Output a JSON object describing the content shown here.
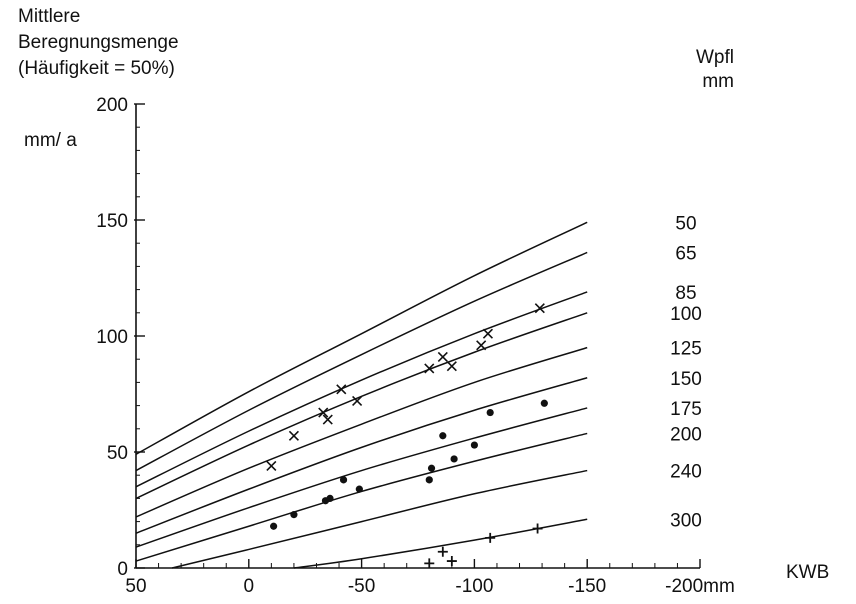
{
  "chart_data": {
    "type": "line",
    "title_lines": [
      "Mittlere",
      "Beregnungsmenge",
      "(Häufigkeit = 50%)"
    ],
    "ylabel_unit": "mm/ a",
    "xlabel": "KWB",
    "xunit_suffix": "mm",
    "legend_title": [
      "Wpfl",
      "mm"
    ],
    "xlim": [
      50,
      -200
    ],
    "ylim": [
      0,
      200
    ],
    "x_ticks": [
      {
        "value": 50,
        "label": "50"
      },
      {
        "value": 0,
        "label": "0"
      },
      {
        "value": -50,
        "label": "-50"
      },
      {
        "value": -100,
        "label": "-100"
      },
      {
        "value": -150,
        "label": "-150"
      },
      {
        "value": -200,
        "label": "-200mm"
      }
    ],
    "y_ticks": [
      {
        "value": 0,
        "label": "0"
      },
      {
        "value": 50,
        "label": "50"
      },
      {
        "value": 100,
        "label": "100"
      },
      {
        "value": 150,
        "label": "150"
      },
      {
        "value": 200,
        "label": "200"
      }
    ],
    "series": [
      {
        "name": "50",
        "x": [
          50,
          0,
          -50,
          -100,
          -150
        ],
        "y": [
          49,
          76,
          101,
          126,
          149
        ]
      },
      {
        "name": "65",
        "x": [
          50,
          0,
          -50,
          -100,
          -150
        ],
        "y": [
          42,
          68,
          92,
          115,
          136
        ]
      },
      {
        "name": "85",
        "x": [
          50,
          0,
          -50,
          -100,
          -150
        ],
        "y": [
          35,
          59,
          81,
          101,
          119
        ]
      },
      {
        "name": "100",
        "x": [
          50,
          0,
          -50,
          -100,
          -150
        ],
        "y": [
          30,
          53,
          74,
          93,
          110
        ]
      },
      {
        "name": "125",
        "x": [
          50,
          0,
          -50,
          -100,
          -150
        ],
        "y": [
          22,
          43,
          62,
          80,
          95
        ]
      },
      {
        "name": "150",
        "x": [
          50,
          0,
          -50,
          -100,
          -150
        ],
        "y": [
          15,
          34,
          52,
          68,
          82
        ]
      },
      {
        "name": "175",
        "x": [
          50,
          0,
          -50,
          -100,
          -150
        ],
        "y": [
          9,
          26,
          42,
          56,
          69
        ]
      },
      {
        "name": "200",
        "x": [
          50,
          0,
          -50,
          -100,
          -150
        ],
        "y": [
          3,
          18,
          33,
          46,
          58
        ]
      },
      {
        "name": "240",
        "x": [
          34,
          0,
          -50,
          -100,
          -150
        ],
        "y": [
          0,
          8,
          20,
          32,
          42
        ]
      },
      {
        "name": "300",
        "x": [
          -20,
          -50,
          -100,
          -150
        ],
        "y": [
          0,
          4,
          12,
          21
        ]
      }
    ],
    "scatter_groups": [
      {
        "marker": "x",
        "points": [
          [
            -10,
            44
          ],
          [
            -20,
            57
          ],
          [
            -33,
            67
          ],
          [
            -35,
            64
          ],
          [
            -41,
            77
          ],
          [
            -48,
            72
          ],
          [
            -80,
            86
          ],
          [
            -86,
            91
          ],
          [
            -90,
            87
          ],
          [
            -103,
            96
          ],
          [
            -106,
            101
          ],
          [
            -129,
            112
          ]
        ]
      },
      {
        "marker": "dot",
        "points": [
          [
            -11,
            18
          ],
          [
            -20,
            23
          ],
          [
            -34,
            29
          ],
          [
            -36,
            30
          ],
          [
            -42,
            38
          ],
          [
            -49,
            34
          ],
          [
            -80,
            38
          ],
          [
            -81,
            43
          ],
          [
            -86,
            57
          ],
          [
            -91,
            47
          ],
          [
            -100,
            53
          ],
          [
            -107,
            67
          ],
          [
            -131,
            71
          ]
        ]
      },
      {
        "marker": "plus",
        "points": [
          [
            -80,
            2
          ],
          [
            -86,
            7
          ],
          [
            -90,
            3
          ],
          [
            -107,
            13
          ],
          [
            -128,
            17
          ]
        ]
      }
    ],
    "grid": false
  }
}
